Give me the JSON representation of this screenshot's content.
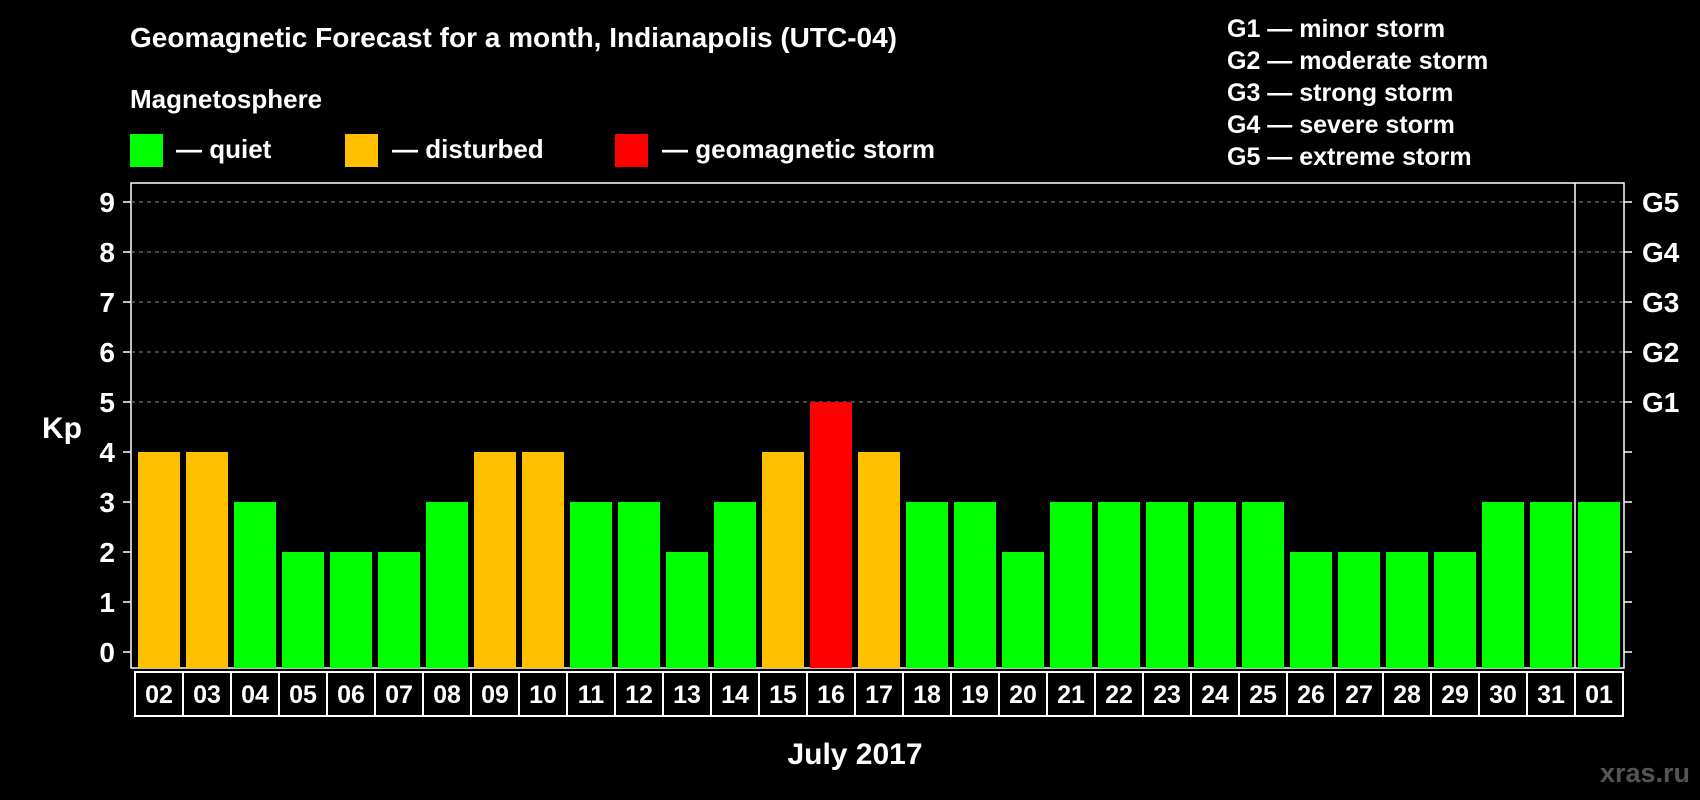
{
  "chart_data": {
    "type": "bar",
    "title": "Geomagnetic Forecast for a month, Indianapolis (UTC-04)",
    "legend_title": "Magnetosphere",
    "legend": [
      {
        "key": "quiet",
        "label": "— quiet",
        "color": "#00ff00"
      },
      {
        "key": "disturbed",
        "label": "— disturbed",
        "color": "#ffc000"
      },
      {
        "key": "storm",
        "label": "— geomagnetic storm",
        "color": "#ff0000"
      }
    ],
    "storm_levels": [
      {
        "code": "G1",
        "text": "G1 — minor storm",
        "kp": 5
      },
      {
        "code": "G2",
        "text": "G2 — moderate storm",
        "kp": 6
      },
      {
        "code": "G3",
        "text": "G3 — strong storm",
        "kp": 7
      },
      {
        "code": "G4",
        "text": "G4 — severe storm",
        "kp": 8
      },
      {
        "code": "G5",
        "text": "G5 — extreme storm",
        "kp": 9
      }
    ],
    "ylabel": "Kp",
    "ylim": [
      0,
      9
    ],
    "yticks": [
      0,
      1,
      2,
      3,
      4,
      5,
      6,
      7,
      8,
      9
    ],
    "xlabel": "July 2017",
    "categories": [
      "02",
      "03",
      "04",
      "05",
      "06",
      "07",
      "08",
      "09",
      "10",
      "11",
      "12",
      "13",
      "14",
      "15",
      "16",
      "17",
      "18",
      "19",
      "20",
      "21",
      "22",
      "23",
      "24",
      "25",
      "26",
      "27",
      "28",
      "29",
      "30",
      "31",
      "01"
    ],
    "values": [
      4,
      4,
      3,
      2,
      2,
      2,
      3,
      4,
      4,
      3,
      3,
      2,
      3,
      4,
      5,
      4,
      3,
      3,
      2,
      3,
      3,
      3,
      3,
      3,
      2,
      2,
      2,
      2,
      3,
      3,
      3
    ],
    "status": [
      "disturbed",
      "disturbed",
      "quiet",
      "quiet",
      "quiet",
      "quiet",
      "quiet",
      "disturbed",
      "disturbed",
      "quiet",
      "quiet",
      "quiet",
      "quiet",
      "disturbed",
      "storm",
      "disturbed",
      "quiet",
      "quiet",
      "quiet",
      "quiet",
      "quiet",
      "quiet",
      "quiet",
      "quiet",
      "quiet",
      "quiet",
      "quiet",
      "quiet",
      "quiet",
      "quiet",
      "quiet"
    ],
    "grid_dashed_from_kp": 5,
    "month_separator_before": "01",
    "watermark": "xras.ru"
  }
}
